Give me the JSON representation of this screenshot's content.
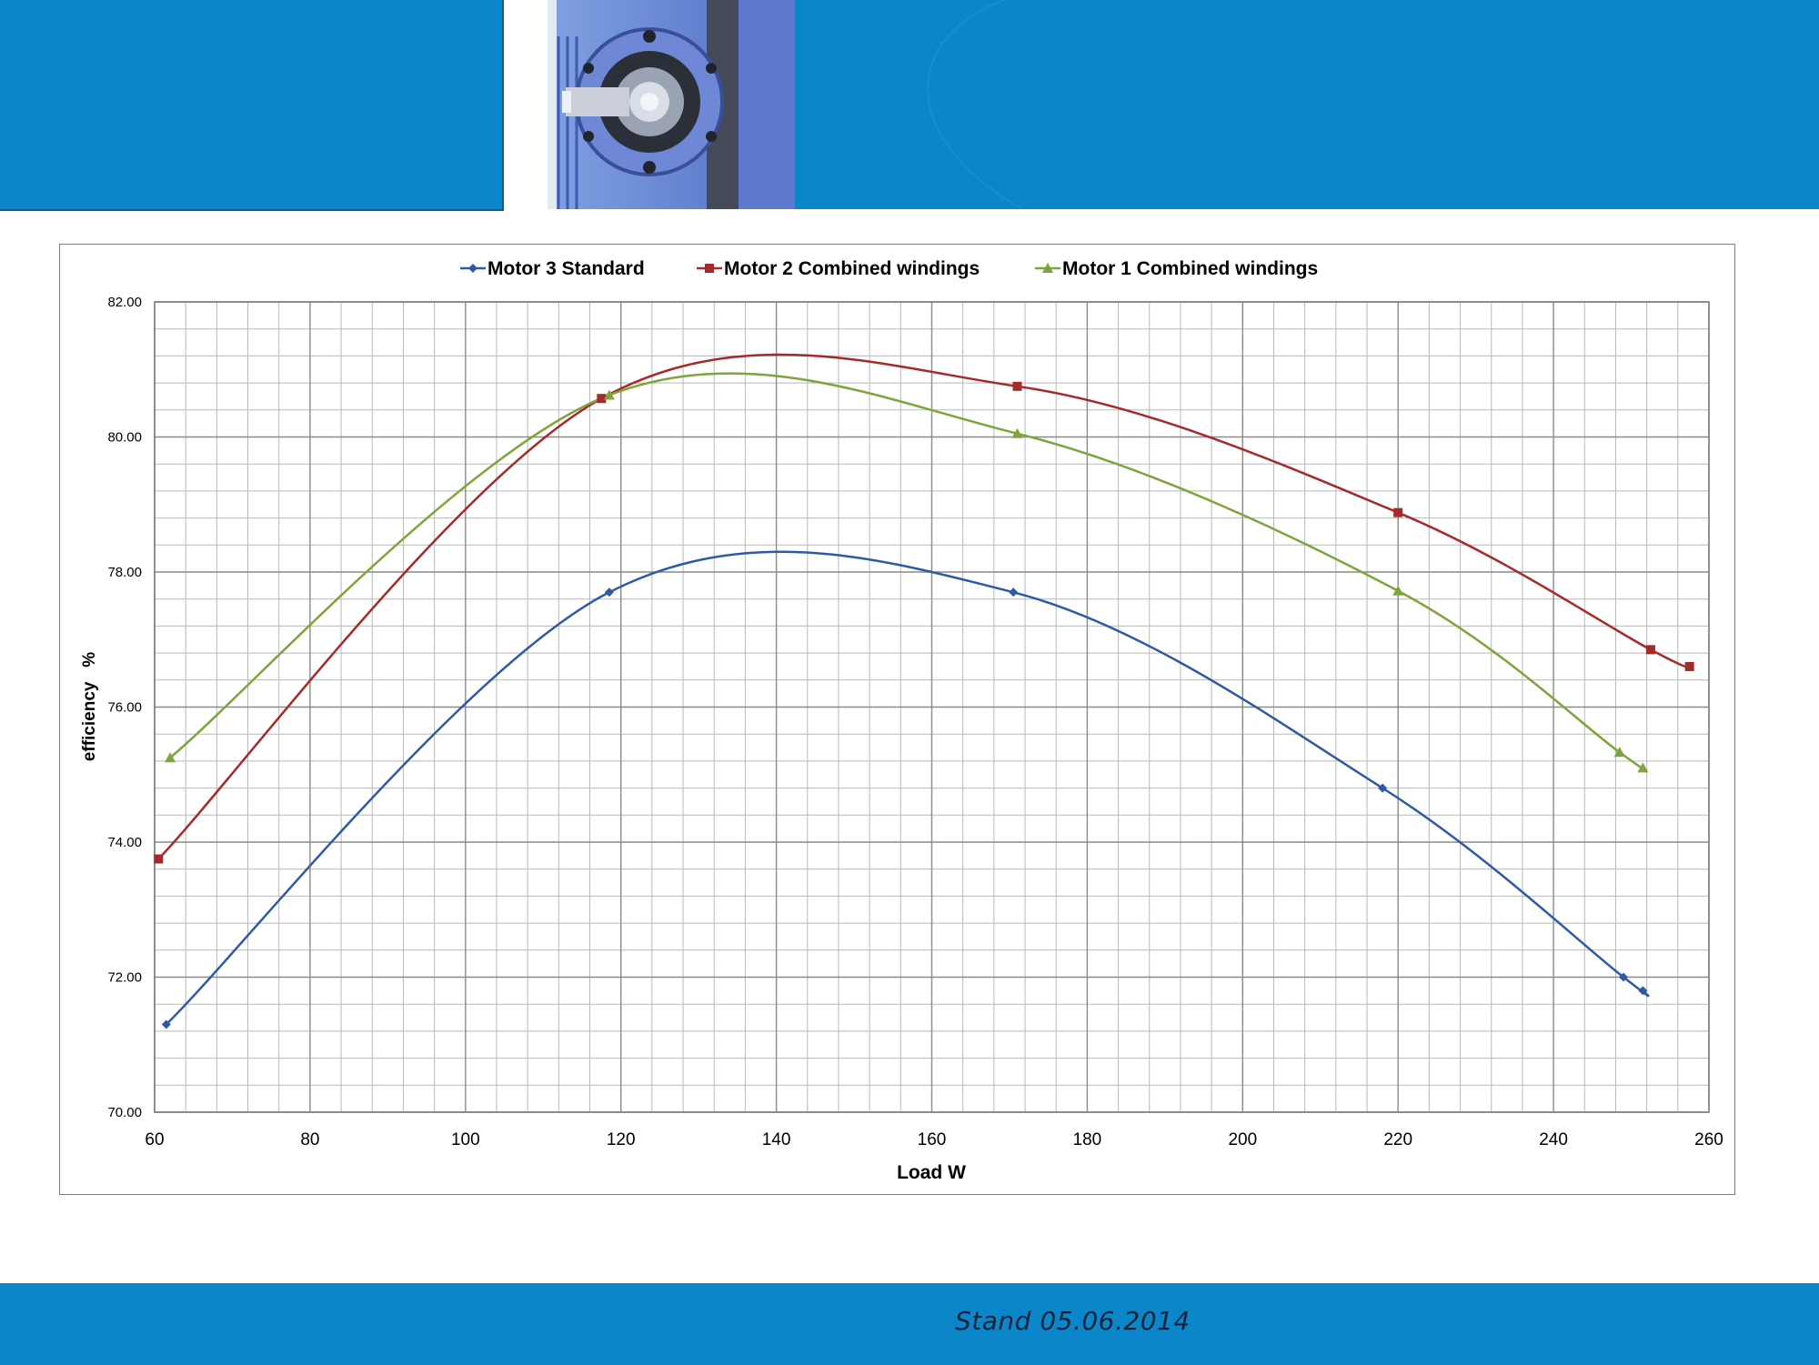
{
  "footer": {
    "stand_label": "Stand 05.06.2014"
  },
  "header": {
    "photo_icon": "gear-motor-photo"
  },
  "colors": {
    "band_blue": "#0b86c8",
    "motor3": "#2e5aa5",
    "motor2": "#a52a2a",
    "motor1": "#7ea53c"
  },
  "chart_data": {
    "type": "line",
    "title": "",
    "xlabel": "Load W",
    "ylabel": "efficiency   %",
    "xlim": [
      60,
      260
    ],
    "ylim": [
      70,
      82
    ],
    "x_ticks": [
      "60",
      "80",
      "100",
      "120",
      "140",
      "160",
      "180",
      "200",
      "220",
      "240",
      "260"
    ],
    "y_ticks": [
      "70.00",
      "72.00",
      "74.00",
      "76.00",
      "78.00",
      "80.00",
      "82.00"
    ],
    "grid": true,
    "smooth": true,
    "legend_position": "top",
    "series": [
      {
        "name": "Motor 3 Standard",
        "color": "#2e5aa5",
        "marker": "diamond",
        "points": [
          [
            61.5,
            71.3
          ],
          [
            118.5,
            77.7
          ],
          [
            170.5,
            77.7
          ],
          [
            218,
            74.8
          ],
          [
            249,
            72.0
          ],
          [
            251.5,
            71.8
          ]
        ]
      },
      {
        "name": "Motor 2 Combined windings",
        "color": "#a52a2a",
        "marker": "square",
        "points": [
          [
            60.5,
            73.75
          ],
          [
            117.5,
            80.57
          ],
          [
            171,
            80.75
          ],
          [
            220,
            78.88
          ],
          [
            252.5,
            76.85
          ],
          [
            257.5,
            76.6
          ]
        ]
      },
      {
        "name": "Motor 1 Combined windings",
        "color": "#7ea53c",
        "marker": "triangle",
        "points": [
          [
            62,
            75.25
          ],
          [
            118.5,
            80.62
          ],
          [
            171,
            80.05
          ],
          [
            220,
            77.72
          ],
          [
            248.5,
            75.33
          ],
          [
            251.5,
            75.1
          ]
        ]
      }
    ]
  }
}
